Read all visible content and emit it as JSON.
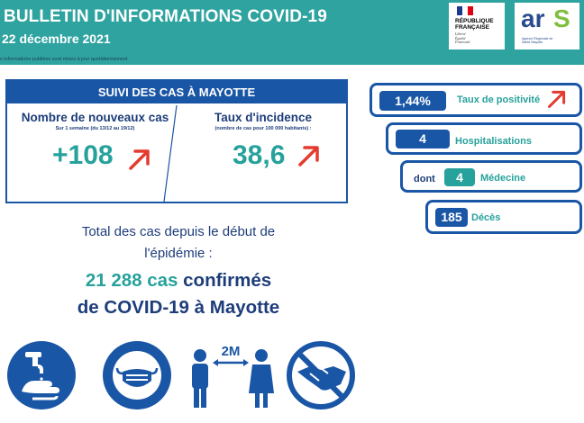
{
  "header": {
    "title": "BULLETIN D'INFORMATIONS COVID-19",
    "date": "22 décembre 2021",
    "note": "s informations publiées sont mises à jour quotidiennement",
    "logo_rf": {
      "line1": "RÉPUBLIQUE",
      "line2": "FRANÇAISE",
      "motto1": "Liberté",
      "motto2": "Égalité",
      "motto3": "Fraternité"
    },
    "logo_ars": {
      "a": "ar",
      "s": "S",
      "sub": "Agence Régionale de Santé Mayotte"
    }
  },
  "suivi": {
    "heading": "SUIVI DES CAS À MAYOTTE",
    "new_cases": {
      "title": "Nombre de nouveaux cas",
      "sub": "Sur 1 semaine (du 13/12 au 19/12)",
      "value": "+108",
      "trend": "up"
    },
    "incidence": {
      "title": "Taux d'incidence",
      "sub": "(nombre de cas pour 100 000 habitants) :",
      "value": "38,6",
      "trend": "up"
    }
  },
  "indicators": {
    "positivity": {
      "value": "1,44%",
      "label": "Taux de positivité",
      "trend": "up"
    },
    "hospital": {
      "value": "4",
      "label": "Hospitalisations"
    },
    "medecine": {
      "prefix": "dont",
      "value": "4",
      "label": "Médecine"
    },
    "deces": {
      "value": "185",
      "label": "Décès"
    }
  },
  "totals": {
    "line1": "Total des cas depuis le début de",
    "line2": "l'épidémie :",
    "count": "21 288 cas",
    "confirmed": "confirmés",
    "line4": "de COVID-19 à Mayotte"
  },
  "gestures": {
    "distance_label": "2M",
    "icons": [
      "hand-washing-icon",
      "face-mask-icon",
      "distancing-icon",
      "no-handshake-icon"
    ]
  },
  "colors": {
    "teal": "#2fa39f",
    "blue": "#1a56a6",
    "navy": "#1d3d7a",
    "red": "#e53a2f"
  }
}
